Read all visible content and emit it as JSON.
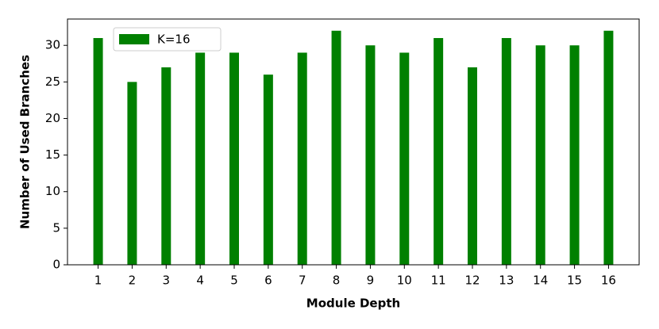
{
  "chart_data": {
    "type": "bar",
    "x_label": "Module Depth",
    "y_label": "Number of Used Branches",
    "categories": [
      "1",
      "2",
      "3",
      "4",
      "5",
      "6",
      "7",
      "8",
      "9",
      "10",
      "11",
      "12",
      "13",
      "14",
      "15",
      "16"
    ],
    "series": [
      {
        "name": "K=16",
        "color": "#008000",
        "values": [
          31,
          25,
          27,
          29,
          29,
          26,
          29,
          32,
          30,
          29,
          31,
          27,
          31,
          30,
          30,
          32
        ]
      }
    ],
    "ylim": [
      0,
      33.6
    ],
    "yticks": [
      0,
      5,
      10,
      15,
      20,
      25,
      30
    ],
    "legend": "upper left"
  }
}
